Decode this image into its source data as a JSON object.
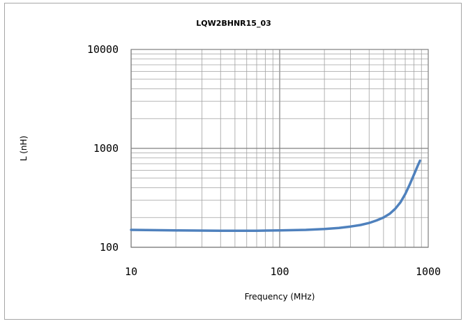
{
  "chart_data": {
    "type": "line",
    "title": "LQW2BHNR15_03",
    "xlabel": "Frequency (MHz)",
    "ylabel": "L (nH)",
    "xscale": "log",
    "yscale": "log",
    "xlim": [
      10,
      1000
    ],
    "ylim": [
      100,
      10000
    ],
    "x_tick_labels": [
      "10",
      "100",
      "1000"
    ],
    "y_tick_labels": [
      "100",
      "1000",
      "10000"
    ],
    "grid": true,
    "legend": "none",
    "line_color": "#4f81bd",
    "series": [
      {
        "x": [
          10,
          20,
          40,
          70,
          100,
          150,
          200,
          250,
          300,
          350,
          400,
          450,
          500,
          550,
          600,
          650,
          700,
          750,
          800,
          850,
          880
        ],
        "values": [
          150,
          148,
          147,
          147,
          148,
          150,
          153,
          157,
          162,
          168,
          176,
          187,
          200,
          218,
          245,
          285,
          345,
          430,
          540,
          670,
          750
        ]
      }
    ]
  }
}
